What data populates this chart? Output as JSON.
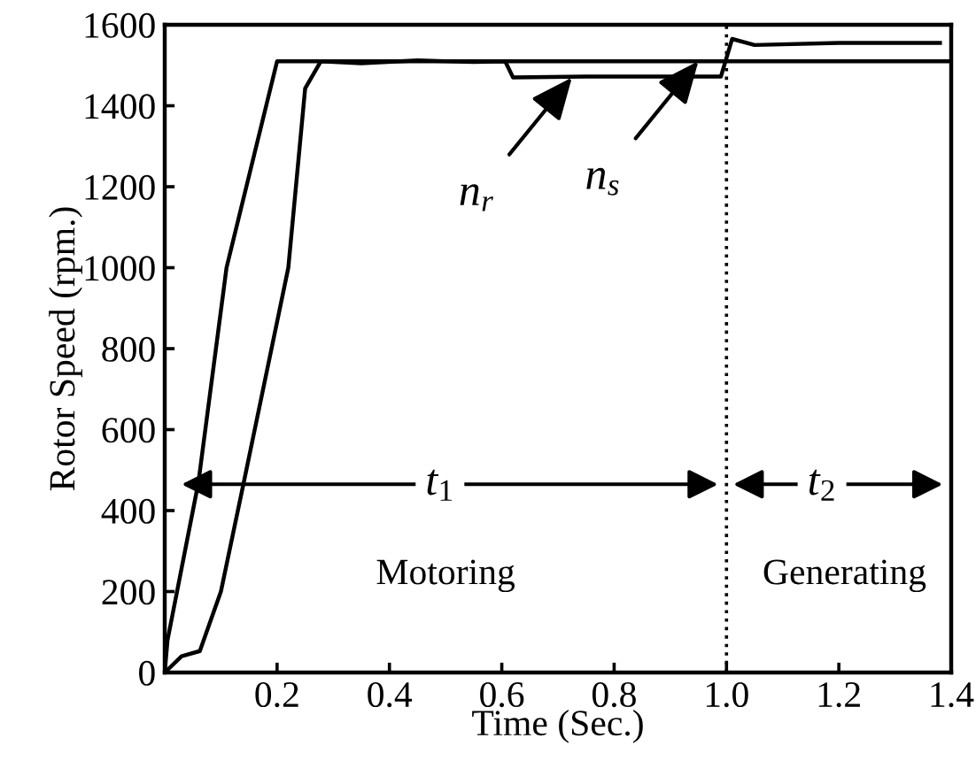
{
  "chart_data": {
    "type": "line",
    "xlabel": "Time (Sec.)",
    "ylabel": "Rotor Speed (rpm.)",
    "xlim": [
      0,
      1.4
    ],
    "ylim": [
      0,
      1600
    ],
    "xticks": [
      {
        "value": 0.2,
        "label": "0.2"
      },
      {
        "value": 0.4,
        "label": "0.4"
      },
      {
        "value": 0.6,
        "label": "0.6"
      },
      {
        "value": 0.8,
        "label": "0.8"
      },
      {
        "value": 1.0,
        "label": "1.0"
      },
      {
        "value": 1.2,
        "label": "1.2"
      },
      {
        "value": 1.4,
        "label": "1.4"
      }
    ],
    "yticks": [
      0,
      200,
      400,
      600,
      800,
      1000,
      1200,
      1400,
      1600
    ],
    "grid": false,
    "legend": false,
    "line_style": "solid",
    "marker": "none",
    "series": [
      {
        "color": "#000000",
        "x": [
          0,
          0.005,
          0.06,
          0.11,
          0.2,
          1.4
        ],
        "values": [
          0,
          80,
          470,
          1000,
          1510,
          1510
        ]
      },
      {
        "color": "#000000",
        "x": [
          0,
          0.03,
          0.0625,
          0.1,
          0.14,
          0.22,
          0.25,
          0.278,
          0.35,
          0.45,
          0.55,
          0.606,
          0.62,
          0.75,
          0.99,
          1.01,
          1.05,
          1.2,
          1.38
        ],
        "values": [
          0,
          40,
          53,
          200,
          465,
          1000,
          1443,
          1510,
          1505,
          1512,
          1508,
          1510,
          1470,
          1472,
          1472,
          1565,
          1550,
          1555,
          1555
        ]
      }
    ],
    "ref_lines": [
      {
        "axis": "x",
        "value": 1.0,
        "line_style": "dotted",
        "color": "#000000"
      }
    ],
    "annotations": [
      {
        "text": "n$_{r}$",
        "x": 0.725,
        "y": 1470
      },
      {
        "text": "n$_{s}$",
        "x": 0.95,
        "y": 1510
      },
      {
        "text": "t$_{1}$",
        "x": 0.49,
        "y": 465
      },
      {
        "text": "t$_{2}$",
        "x": 1.17,
        "y": 465
      },
      "Motoring",
      "Generating"
    ]
  }
}
